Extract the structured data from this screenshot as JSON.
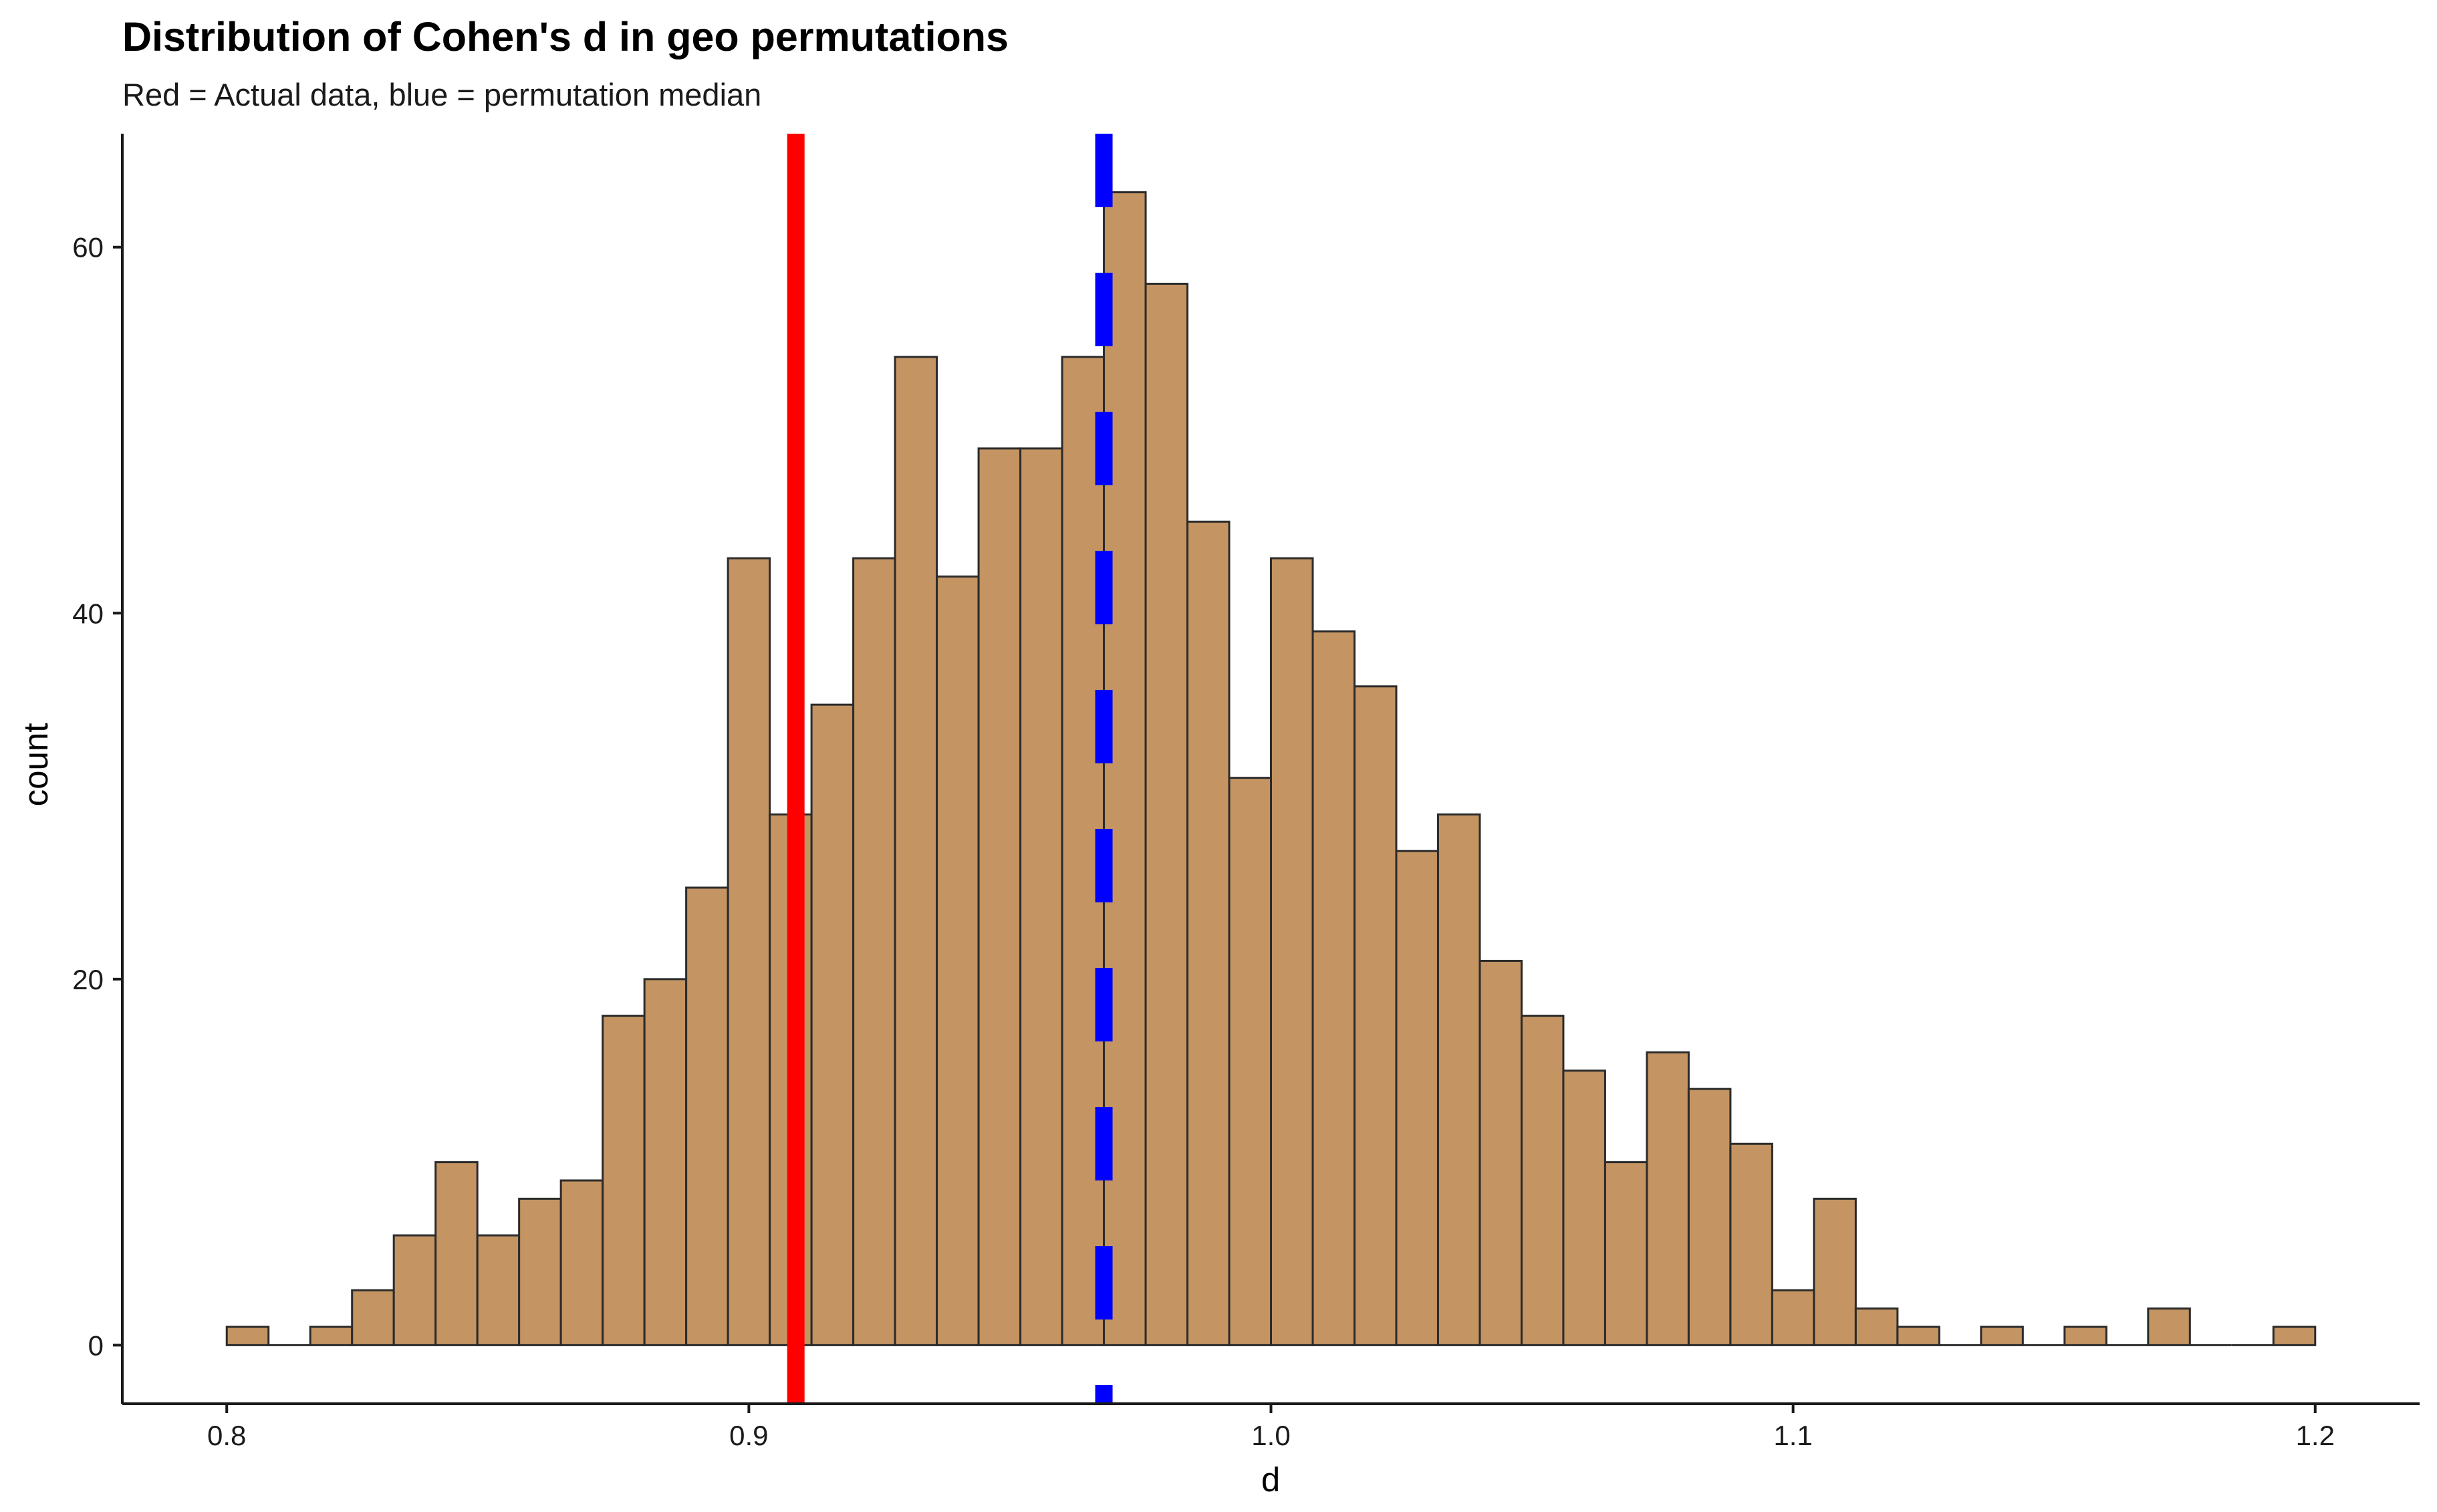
{
  "chart_data": {
    "type": "bar",
    "title": "Distribution of Cohen's d in geo permutations",
    "subtitle": "Red = Actual data, blue = permutation median",
    "xlabel": "d",
    "ylabel": "count",
    "bin_width": 0.008,
    "bins": [
      {
        "x": 0.8,
        "count": 1
      },
      {
        "x": 0.808,
        "count": 0
      },
      {
        "x": 0.816,
        "count": 1
      },
      {
        "x": 0.824,
        "count": 3
      },
      {
        "x": 0.832,
        "count": 6
      },
      {
        "x": 0.84,
        "count": 10
      },
      {
        "x": 0.848,
        "count": 6
      },
      {
        "x": 0.856,
        "count": 8
      },
      {
        "x": 0.864,
        "count": 9
      },
      {
        "x": 0.872,
        "count": 18
      },
      {
        "x": 0.88,
        "count": 20
      },
      {
        "x": 0.888,
        "count": 25
      },
      {
        "x": 0.896,
        "count": 43
      },
      {
        "x": 0.904,
        "count": 29
      },
      {
        "x": 0.912,
        "count": 35
      },
      {
        "x": 0.92,
        "count": 43
      },
      {
        "x": 0.928,
        "count": 54
      },
      {
        "x": 0.936,
        "count": 42
      },
      {
        "x": 0.944,
        "count": 49
      },
      {
        "x": 0.952,
        "count": 49
      },
      {
        "x": 0.96,
        "count": 54
      },
      {
        "x": 0.968,
        "count": 63
      },
      {
        "x": 0.976,
        "count": 58
      },
      {
        "x": 0.984,
        "count": 45
      },
      {
        "x": 0.992,
        "count": 31
      },
      {
        "x": 1.0,
        "count": 43
      },
      {
        "x": 1.008,
        "count": 39
      },
      {
        "x": 1.016,
        "count": 36
      },
      {
        "x": 1.024,
        "count": 27
      },
      {
        "x": 1.032,
        "count": 29
      },
      {
        "x": 1.04,
        "count": 21
      },
      {
        "x": 1.048,
        "count": 18
      },
      {
        "x": 1.056,
        "count": 15
      },
      {
        "x": 1.064,
        "count": 10
      },
      {
        "x": 1.072,
        "count": 16
      },
      {
        "x": 1.08,
        "count": 14
      },
      {
        "x": 1.088,
        "count": 11
      },
      {
        "x": 1.096,
        "count": 3
      },
      {
        "x": 1.104,
        "count": 8
      },
      {
        "x": 1.112,
        "count": 2
      },
      {
        "x": 1.12,
        "count": 1
      },
      {
        "x": 1.128,
        "count": 0
      },
      {
        "x": 1.136,
        "count": 1
      },
      {
        "x": 1.144,
        "count": 0
      },
      {
        "x": 1.152,
        "count": 1
      },
      {
        "x": 1.16,
        "count": 0
      },
      {
        "x": 1.168,
        "count": 2
      },
      {
        "x": 1.176,
        "count": 0
      },
      {
        "x": 1.184,
        "count": 0
      },
      {
        "x": 1.192,
        "count": 1
      }
    ],
    "reference_lines": [
      {
        "label": "Actual data",
        "x": 0.909,
        "color": "#ff0000",
        "style": "solid"
      },
      {
        "label": "permutation median",
        "x": 0.968,
        "color": "#0000ff",
        "style": "dashed"
      }
    ],
    "x_ticks": [
      {
        "value": 0.8,
        "label": "0.8"
      },
      {
        "value": 0.9,
        "label": "0.9"
      },
      {
        "value": 1.0,
        "label": "1.0"
      },
      {
        "value": 1.1,
        "label": "1.1"
      },
      {
        "value": 1.2,
        "label": "1.2"
      }
    ],
    "y_ticks": [
      {
        "value": 0,
        "label": "0"
      },
      {
        "value": 20,
        "label": "20"
      },
      {
        "value": 40,
        "label": "40"
      },
      {
        "value": 60,
        "label": "60"
      }
    ],
    "xlim": [
      0.78,
      1.22
    ],
    "ylim": [
      -3.2,
      66.2
    ],
    "grid": false,
    "legend": "none",
    "colors": {
      "bar_fill": "#c49463",
      "bar_stroke": "#2b2b2b",
      "axis": "#1a1a1a"
    }
  }
}
